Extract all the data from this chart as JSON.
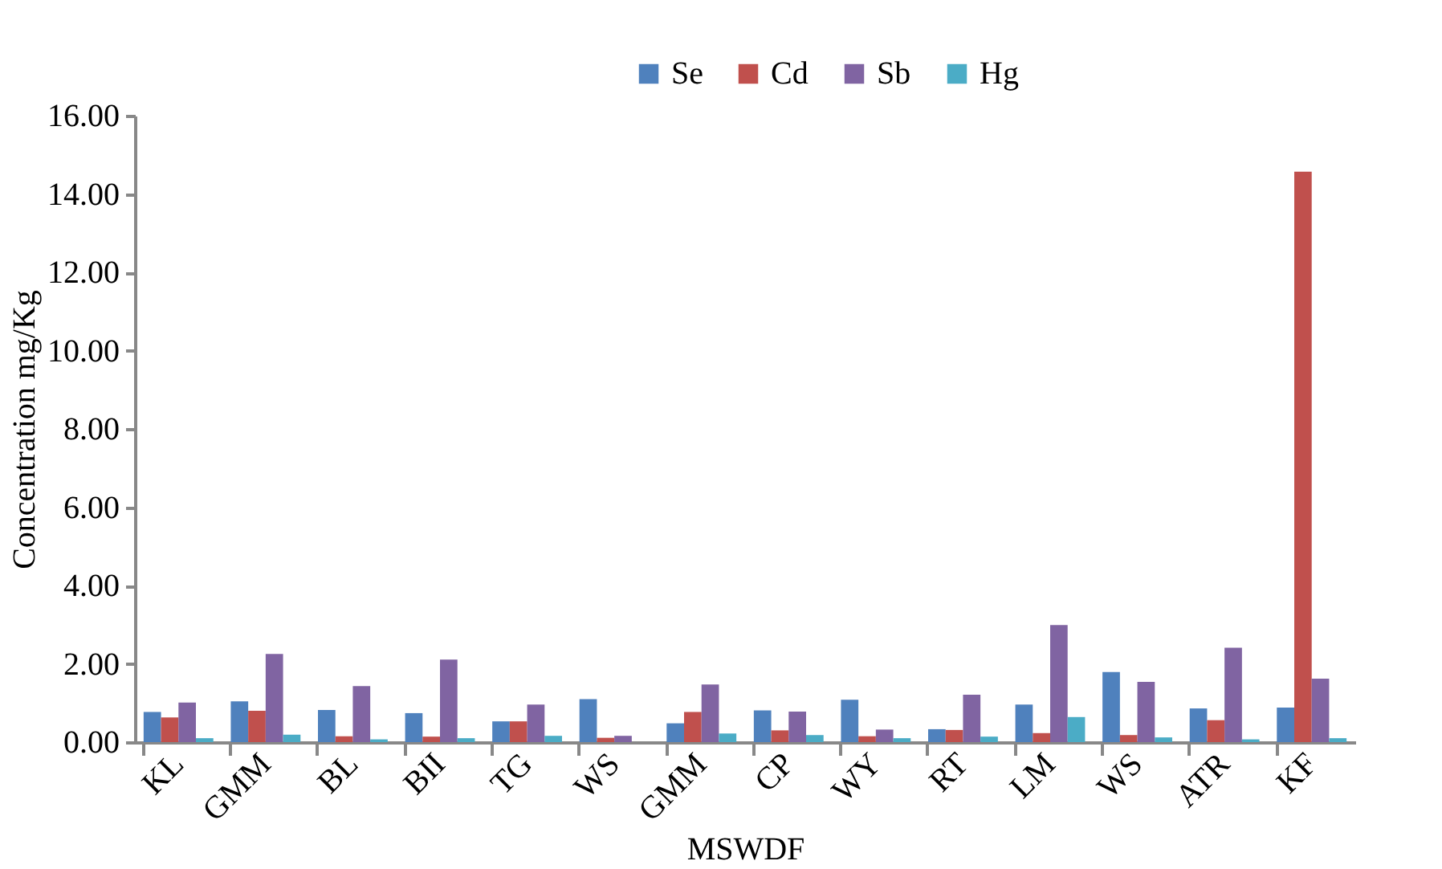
{
  "chart_data": {
    "type": "bar",
    "xlabel": "MSWDF",
    "ylabel": "Concentration mg/Kg",
    "categories": [
      "KL",
      "GMM",
      "BL",
      "BII",
      "TG",
      "WS",
      "GMM",
      "CP",
      "WY",
      "RT",
      "LM",
      "WS",
      "ATR",
      "KF"
    ],
    "series": [
      {
        "name": "Se",
        "color": "#4f81bd",
        "values": [
          0.77,
          1.04,
          0.82,
          0.74,
          0.53,
          1.1,
          0.48,
          0.81,
          1.08,
          0.33,
          0.96,
          1.79,
          0.86,
          0.88
        ]
      },
      {
        "name": "Cd",
        "color": "#c0504d",
        "values": [
          0.63,
          0.8,
          0.15,
          0.14,
          0.53,
          0.11,
          0.77,
          0.3,
          0.15,
          0.31,
          0.23,
          0.18,
          0.56,
          14.57
        ]
      },
      {
        "name": "Sb",
        "color": "#8064a2",
        "values": [
          1.01,
          2.25,
          1.43,
          2.11,
          0.96,
          0.16,
          1.47,
          0.78,
          0.32,
          1.21,
          2.99,
          1.54,
          2.41,
          1.62
        ]
      },
      {
        "name": "Hg",
        "color": "#4bacc6",
        "values": [
          0.1,
          0.19,
          0.07,
          0.1,
          0.16,
          null,
          0.22,
          0.18,
          0.1,
          0.14,
          0.64,
          0.12,
          0.07,
          0.1
        ]
      }
    ],
    "ylim": [
      0,
      16
    ],
    "yticks": [
      {
        "value": 0,
        "label": "0.00"
      },
      {
        "value": 2,
        "label": "2.00"
      },
      {
        "value": 4,
        "label": "4.00"
      },
      {
        "value": 6,
        "label": "6.00"
      },
      {
        "value": 8,
        "label": "8.00"
      },
      {
        "value": 10,
        "label": "10.00"
      },
      {
        "value": 12,
        "label": "12.00"
      },
      {
        "value": 14,
        "label": "14.00"
      },
      {
        "value": 16,
        "label": "16.00"
      }
    ],
    "legend": "top",
    "grid": false
  }
}
